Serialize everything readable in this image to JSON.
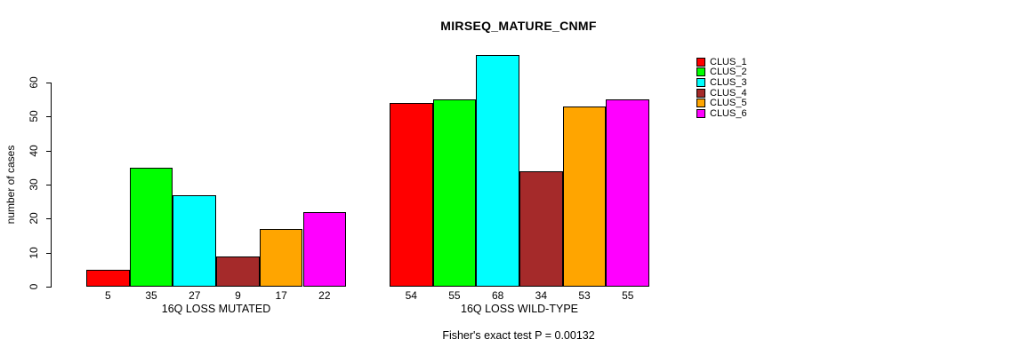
{
  "chart_data": {
    "type": "bar",
    "title": "MIRSEQ_MATURE_CNMF",
    "ylabel": "number of cases",
    "xlabel": "",
    "ylim": [
      0,
      60
    ],
    "yticks": [
      0,
      10,
      20,
      30,
      40,
      50,
      60
    ],
    "grid": false,
    "legend_position": "top-right",
    "legend_entries": [
      "CLUS_1",
      "CLUS_2",
      "CLUS_3",
      "CLUS_4",
      "CLUS_5",
      "CLUS_6"
    ],
    "colors": [
      "#FF0000",
      "#00FF00",
      "#00FFFF",
      "#A52A2A",
      "#FFA500",
      "#FF00FF"
    ],
    "groups": [
      {
        "label": "16Q LOSS MUTATED",
        "values": [
          5,
          35,
          27,
          9,
          17,
          22
        ]
      },
      {
        "label": "16Q LOSS WILD-TYPE",
        "values": [
          54,
          55,
          68,
          34,
          53,
          55
        ]
      }
    ],
    "series": [
      {
        "name": "CLUS_1",
        "color": "#FF0000",
        "values": [
          5,
          54
        ]
      },
      {
        "name": "CLUS_2",
        "color": "#00FF00",
        "values": [
          35,
          55
        ]
      },
      {
        "name": "CLUS_3",
        "color": "#00FFFF",
        "values": [
          27,
          68
        ]
      },
      {
        "name": "CLUS_4",
        "color": "#A52A2A",
        "values": [
          9,
          34
        ]
      },
      {
        "name": "CLUS_5",
        "color": "#FFA500",
        "values": [
          17,
          53
        ]
      },
      {
        "name": "CLUS_6",
        "color": "#FF00FF",
        "values": [
          22,
          55
        ]
      }
    ],
    "bar_value_labels_shown": true,
    "annotation": "Fisher's exact test P = 0.00132",
    "axis_color": "#000000",
    "background_color": "#FFFFFF"
  }
}
